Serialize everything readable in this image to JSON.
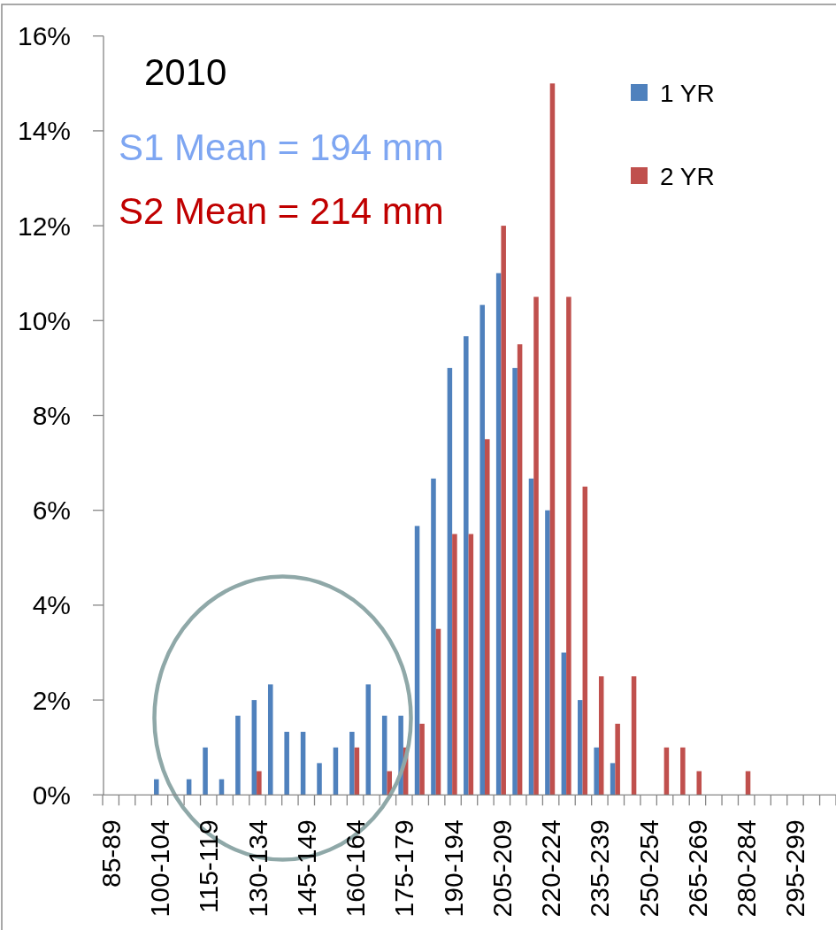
{
  "chart_data": {
    "type": "bar",
    "title": "2010",
    "annotations": [
      "S1 Mean = 194 mm",
      "S2 Mean = 214 mm"
    ],
    "categories": [
      "85-89",
      null,
      null,
      "100-104",
      null,
      null,
      "115-119",
      null,
      null,
      "130-134",
      null,
      null,
      "145-149",
      null,
      null,
      "160-164",
      null,
      null,
      "175-179",
      null,
      null,
      "190-194",
      null,
      null,
      "205-209",
      null,
      null,
      "220-224",
      null,
      null,
      "235-239",
      null,
      null,
      "250-254",
      null,
      null,
      "265-269",
      null,
      null,
      "280-284",
      null,
      null,
      "295-299",
      null,
      null
    ],
    "series": [
      {
        "name": "1 YR",
        "color": "#4f81bd",
        "values": [
          null,
          null,
          null,
          0.33,
          null,
          0.33,
          1.0,
          0.33,
          1.67,
          2.0,
          2.33,
          1.33,
          1.33,
          0.67,
          1.0,
          1.33,
          2.33,
          1.67,
          1.67,
          5.67,
          6.67,
          9.0,
          9.67,
          10.33,
          11.0,
          9.0,
          6.67,
          6.0,
          3.0,
          2.0,
          1.0,
          0.67,
          null,
          null,
          null,
          null,
          null,
          null,
          null,
          null,
          null,
          null,
          null,
          null,
          null
        ]
      },
      {
        "name": "2 YR",
        "color": "#c0504d",
        "values": [
          null,
          null,
          null,
          null,
          null,
          null,
          null,
          null,
          null,
          0.5,
          null,
          null,
          null,
          null,
          null,
          1.0,
          null,
          0.5,
          1.0,
          1.5,
          3.5,
          5.5,
          5.5,
          7.5,
          12.0,
          9.5,
          10.5,
          15.0,
          10.5,
          6.5,
          2.5,
          1.5,
          2.5,
          null,
          1.0,
          1.0,
          0.5,
          null,
          null,
          0.5,
          null,
          null,
          null,
          null,
          null
        ]
      }
    ],
    "ylim": [
      0,
      16
    ],
    "yticks": [
      {
        "value": 0,
        "label": "0%"
      },
      {
        "value": 2,
        "label": "2%"
      },
      {
        "value": 4,
        "label": "4%"
      },
      {
        "value": 6,
        "label": "6%"
      },
      {
        "value": 8,
        "label": "8%"
      },
      {
        "value": 10,
        "label": "10%"
      },
      {
        "value": 12,
        "label": "12%"
      },
      {
        "value": 14,
        "label": "14%"
      },
      {
        "value": 16,
        "label": "16%"
      }
    ],
    "legend": "top right"
  }
}
